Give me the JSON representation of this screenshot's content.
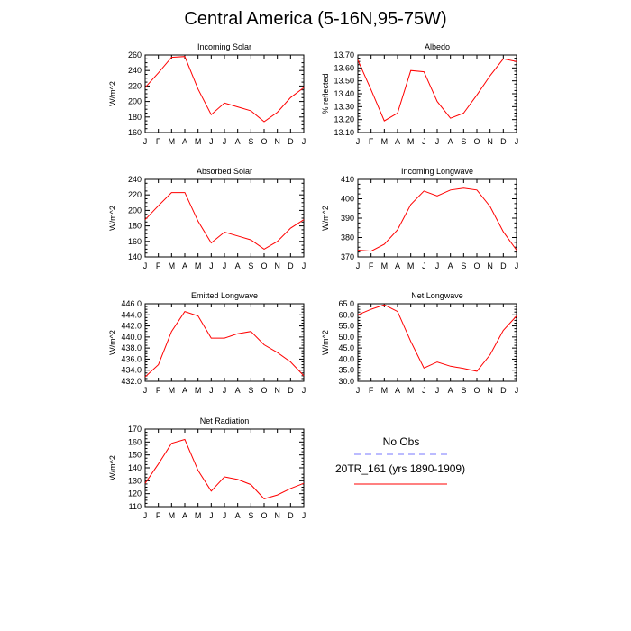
{
  "title": "Central America (5-16N,95-75W)",
  "colors": {
    "model": "#ff0000",
    "obs": "#7777ff",
    "axis": "#000000"
  },
  "legend": {
    "placement": "bottom-right",
    "obs_label": "No Obs",
    "model_label": "20TR_161 (yrs 1890-1909)"
  },
  "chart_data": [
    {
      "type": "line",
      "title": "Incoming Solar",
      "ylabel": "W/m^2",
      "categories": [
        "J",
        "F",
        "M",
        "A",
        "M",
        "J",
        "J",
        "A",
        "S",
        "O",
        "N",
        "D",
        "J"
      ],
      "ylim": [
        160,
        260
      ],
      "yticks": [
        160,
        180,
        200,
        220,
        240,
        260
      ],
      "ytick_labels": [
        "160",
        "180",
        "200",
        "220",
        "240",
        "260"
      ],
      "series": [
        {
          "values": [
            218,
            237,
            257,
            258,
            216,
            183,
            198,
            193,
            188,
            174,
            186,
            205,
            218
          ]
        }
      ]
    },
    {
      "type": "line",
      "title": "Albedo",
      "ylabel": "% reflected",
      "categories": [
        "J",
        "F",
        "M",
        "A",
        "M",
        "J",
        "J",
        "A",
        "S",
        "O",
        "N",
        "D",
        "J"
      ],
      "ylim": [
        13.1,
        13.7
      ],
      "yticks": [
        13.1,
        13.2,
        13.3,
        13.4,
        13.5,
        13.6,
        13.7
      ],
      "ytick_labels": [
        "13.10",
        "13.20",
        "13.30",
        "13.40",
        "13.50",
        "13.60",
        "13.70"
      ],
      "series": [
        {
          "values": [
            13.66,
            13.43,
            13.19,
            13.25,
            13.58,
            13.57,
            13.34,
            13.21,
            13.25,
            13.39,
            13.54,
            13.67,
            13.65
          ]
        }
      ]
    },
    {
      "type": "line",
      "title": "Absorbed Solar",
      "ylabel": "W/m^2",
      "categories": [
        "J",
        "F",
        "M",
        "A",
        "M",
        "J",
        "J",
        "A",
        "S",
        "O",
        "N",
        "D",
        "J"
      ],
      "ylim": [
        140,
        240
      ],
      "yticks": [
        140,
        160,
        180,
        200,
        220,
        240
      ],
      "ytick_labels": [
        "140",
        "160",
        "180",
        "200",
        "220",
        "240"
      ],
      "series": [
        {
          "values": [
            188,
            206,
            223,
            223,
            186,
            158,
            172,
            167,
            162,
            150,
            160,
            177,
            188
          ]
        }
      ]
    },
    {
      "type": "line",
      "title": "Incoming Longwave",
      "ylabel": "W/m^2",
      "categories": [
        "J",
        "F",
        "M",
        "A",
        "M",
        "J",
        "J",
        "A",
        "S",
        "O",
        "N",
        "D",
        "J"
      ],
      "ylim": [
        370,
        410
      ],
      "yticks": [
        370,
        380,
        390,
        400,
        410
      ],
      "ytick_labels": [
        "370",
        "380",
        "390",
        "400",
        "410"
      ],
      "series": [
        {
          "values": [
            373.5,
            373,
            376.5,
            384,
            397,
            404,
            401.5,
            404.5,
            405.5,
            404.5,
            396,
            383,
            373.5
          ]
        }
      ]
    },
    {
      "type": "line",
      "title": "Emitted Longwave",
      "ylabel": "W/m^2",
      "categories": [
        "J",
        "F",
        "M",
        "A",
        "M",
        "J",
        "J",
        "A",
        "S",
        "O",
        "N",
        "D",
        "J"
      ],
      "ylim": [
        432,
        446
      ],
      "yticks": [
        432,
        434,
        436,
        438,
        440,
        442,
        444,
        446
      ],
      "ytick_labels": [
        "432.0",
        "434.0",
        "436.0",
        "438.0",
        "440.0",
        "442.0",
        "444.0",
        "446.0"
      ],
      "series": [
        {
          "values": [
            432.8,
            435,
            441,
            444.6,
            443.8,
            439.8,
            439.8,
            440.6,
            441,
            438.6,
            437.2,
            435.5,
            433
          ]
        }
      ]
    },
    {
      "type": "line",
      "title": "Net Longwave",
      "ylabel": "W/m^2",
      "categories": [
        "J",
        "F",
        "M",
        "A",
        "M",
        "J",
        "J",
        "A",
        "S",
        "O",
        "N",
        "D",
        "J"
      ],
      "ylim": [
        30,
        65
      ],
      "yticks": [
        30,
        35,
        40,
        45,
        50,
        55,
        60,
        65
      ],
      "ytick_labels": [
        "30.0",
        "35.0",
        "40.0",
        "45.0",
        "50.0",
        "55.0",
        "60.0",
        "65.0"
      ],
      "series": [
        {
          "values": [
            60,
            62.5,
            64.5,
            61.5,
            48,
            36,
            38.7,
            36.8,
            35.8,
            34.5,
            42,
            53,
            59.5
          ]
        }
      ]
    },
    {
      "type": "line",
      "title": "Net Radiation",
      "ylabel": "W/m^2",
      "categories": [
        "J",
        "F",
        "M",
        "A",
        "M",
        "J",
        "J",
        "A",
        "S",
        "O",
        "N",
        "D",
        "J"
      ],
      "ylim": [
        110,
        170
      ],
      "yticks": [
        110,
        120,
        130,
        140,
        150,
        160,
        170
      ],
      "ytick_labels": [
        "110",
        "120",
        "130",
        "140",
        "150",
        "160",
        "170"
      ],
      "series": [
        {
          "values": [
            128,
            143,
            159,
            162,
            138,
            122,
            133,
            131,
            127,
            116,
            119,
            124,
            128
          ]
        }
      ]
    }
  ]
}
